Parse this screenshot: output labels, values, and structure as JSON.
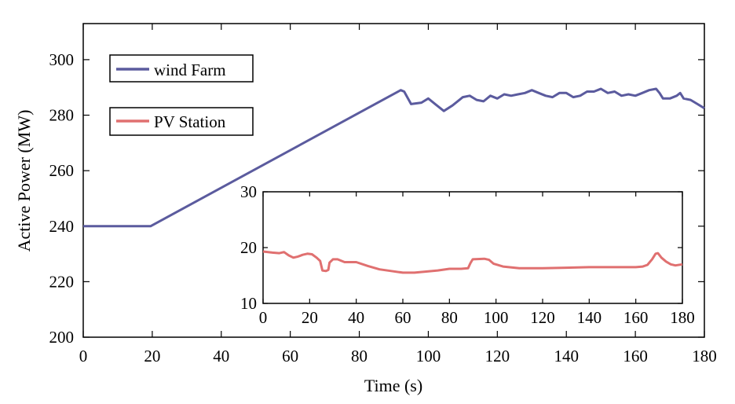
{
  "chart_data": [
    {
      "type": "line",
      "title": "",
      "xlabel": "Time (s)",
      "ylabel": "Active Power (MW)",
      "xlim": [
        0,
        180
      ],
      "ylim": [
        200,
        313
      ],
      "xticks": [
        0,
        20,
        40,
        60,
        80,
        100,
        120,
        140,
        160,
        180
      ],
      "yticks": [
        200,
        220,
        240,
        260,
        280,
        300
      ],
      "grid": false,
      "legend_placement": "top-left",
      "legend": [
        {
          "label": "wind Farm",
          "color": "#5b5b9e"
        },
        {
          "label": "PV Station",
          "color": "#e07070"
        }
      ],
      "series": [
        {
          "name": "wind Farm",
          "color": "#5b5b9e",
          "points": [
            [
              0,
              240
            ],
            [
              19.5,
              240
            ],
            [
              92,
              289
            ],
            [
              93,
              288.5
            ],
            [
              95,
              284
            ],
            [
              98,
              284.5
            ],
            [
              100,
              286
            ],
            [
              102,
              284
            ],
            [
              104.5,
              281.5
            ],
            [
              107,
              283.5
            ],
            [
              110,
              286.5
            ],
            [
              112,
              287
            ],
            [
              114,
              285.5
            ],
            [
              116,
              285
            ],
            [
              118,
              287
            ],
            [
              120,
              286
            ],
            [
              122,
              287.5
            ],
            [
              124,
              287
            ],
            [
              126,
              287.5
            ],
            [
              128,
              288
            ],
            [
              130,
              289
            ],
            [
              132,
              288
            ],
            [
              134,
              287
            ],
            [
              136,
              286.5
            ],
            [
              138,
              288
            ],
            [
              140,
              288
            ],
            [
              142,
              286.5
            ],
            [
              144,
              287
            ],
            [
              146,
              288.5
            ],
            [
              148,
              288.5
            ],
            [
              150,
              289.5
            ],
            [
              152,
              288
            ],
            [
              154,
              288.5
            ],
            [
              156,
              287
            ],
            [
              158,
              287.5
            ],
            [
              160,
              287
            ],
            [
              162,
              288
            ],
            [
              164,
              289
            ],
            [
              166,
              289.5
            ],
            [
              167,
              288
            ],
            [
              168,
              286
            ],
            [
              170,
              286
            ],
            [
              172,
              287
            ],
            [
              173,
              288
            ],
            [
              174,
              286
            ],
            [
              176,
              285.5
            ],
            [
              178,
              284
            ],
            [
              180,
              282.5
            ]
          ]
        }
      ]
    },
    {
      "type": "line",
      "title": "",
      "xlabel": "",
      "ylabel": "",
      "xlim": [
        0,
        180
      ],
      "ylim": [
        10,
        30
      ],
      "xticks": [
        0,
        20,
        40,
        60,
        80,
        100,
        120,
        140,
        160,
        180
      ],
      "yticks": [
        10,
        20,
        30
      ],
      "grid": false,
      "series": [
        {
          "name": "PV Station",
          "color": "#e07070",
          "points": [
            [
              0,
              19.3
            ],
            [
              4,
              19.1
            ],
            [
              7,
              19
            ],
            [
              9,
              19.2
            ],
            [
              11,
              18.6
            ],
            [
              13,
              18.2
            ],
            [
              15,
              18.4
            ],
            [
              17,
              18.7
            ],
            [
              19,
              18.9
            ],
            [
              21,
              18.8
            ],
            [
              23,
              18.2
            ],
            [
              24.5,
              17.6
            ],
            [
              25.5,
              15.9
            ],
            [
              27,
              15.8
            ],
            [
              28,
              16
            ],
            [
              28.5,
              17.3
            ],
            [
              30,
              17.9
            ],
            [
              32,
              17.9
            ],
            [
              35,
              17.4
            ],
            [
              40,
              17.4
            ],
            [
              45,
              16.7
            ],
            [
              50,
              16.1
            ],
            [
              55,
              15.8
            ],
            [
              60,
              15.5
            ],
            [
              65,
              15.5
            ],
            [
              70,
              15.7
            ],
            [
              75,
              15.9
            ],
            [
              80,
              16.2
            ],
            [
              85,
              16.2
            ],
            [
              88,
              16.3
            ],
            [
              89,
              17.2
            ],
            [
              90,
              17.9
            ],
            [
              95,
              18
            ],
            [
              97,
              17.8
            ],
            [
              99,
              17.1
            ],
            [
              103,
              16.6
            ],
            [
              110,
              16.3
            ],
            [
              120,
              16.3
            ],
            [
              130,
              16.4
            ],
            [
              140,
              16.5
            ],
            [
              150,
              16.5
            ],
            [
              160,
              16.5
            ],
            [
              163,
              16.6
            ],
            [
              165,
              16.9
            ],
            [
              167,
              17.9
            ],
            [
              168.5,
              18.9
            ],
            [
              169.5,
              19
            ],
            [
              171,
              18.2
            ],
            [
              173,
              17.5
            ],
            [
              175,
              17
            ],
            [
              177,
              16.8
            ],
            [
              180,
              17
            ]
          ]
        }
      ]
    }
  ]
}
